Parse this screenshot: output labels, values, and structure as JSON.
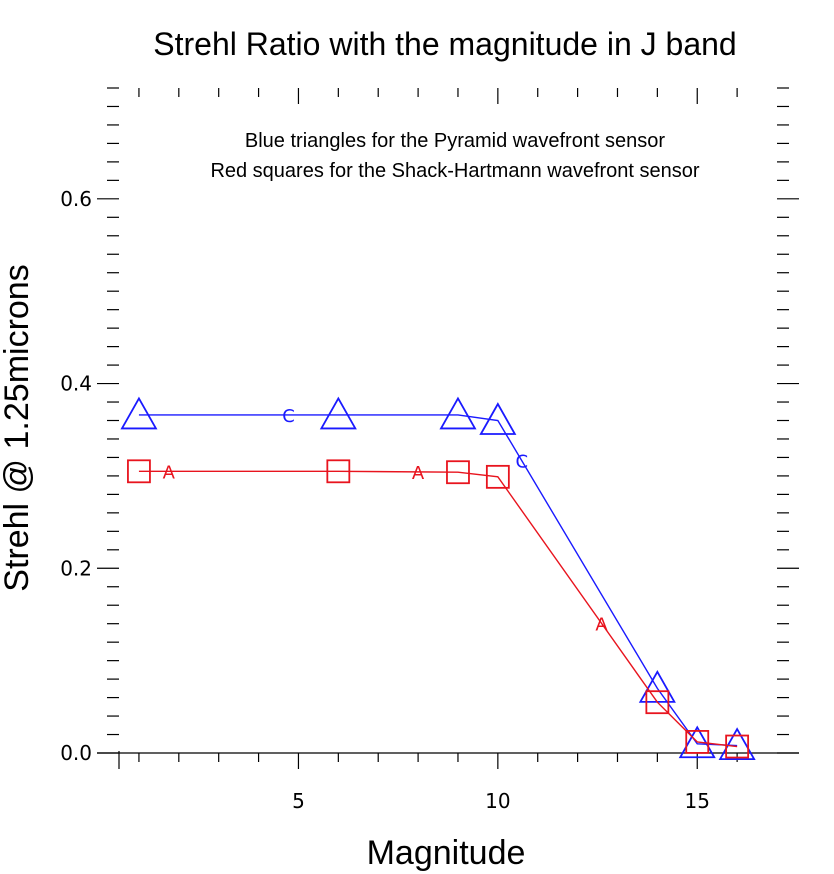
{
  "chart_data": {
    "type": "line",
    "title": "Strehl Ratio with the magnitude in J band",
    "xlabel": "Magnitude",
    "ylabel": "Strehl @ 1.25microns",
    "xlim": [
      0.5,
      17
    ],
    "ylim": [
      0,
      0.72
    ],
    "x_ticks": [
      5,
      10,
      15
    ],
    "y_ticks": [
      0.0,
      0.2,
      0.4,
      0.6
    ],
    "x_tick_labels": [
      "5",
      "10",
      "15"
    ],
    "y_tick_labels": [
      "0.0",
      "0.2",
      "0.4",
      "0.6"
    ],
    "annotations": [
      "Blue triangles for the Pyramid wavefront sensor",
      "Red squares for the Shack-Hartmann wavefront sensor"
    ],
    "series": [
      {
        "marker": "triangle",
        "color": "#1a1aff",
        "line_label": "C",
        "x": [
          1,
          6,
          9,
          10,
          14,
          15,
          16
        ],
        "y": [
          0.366,
          0.366,
          0.366,
          0.36,
          0.07,
          0.01,
          0.008
        ]
      },
      {
        "marker": "square",
        "color": "#e8141e",
        "line_label": "A",
        "x": [
          1,
          6,
          9,
          10,
          14,
          15,
          16
        ],
        "y": [
          0.305,
          0.305,
          0.304,
          0.299,
          0.055,
          0.012,
          0.007
        ]
      }
    ]
  }
}
